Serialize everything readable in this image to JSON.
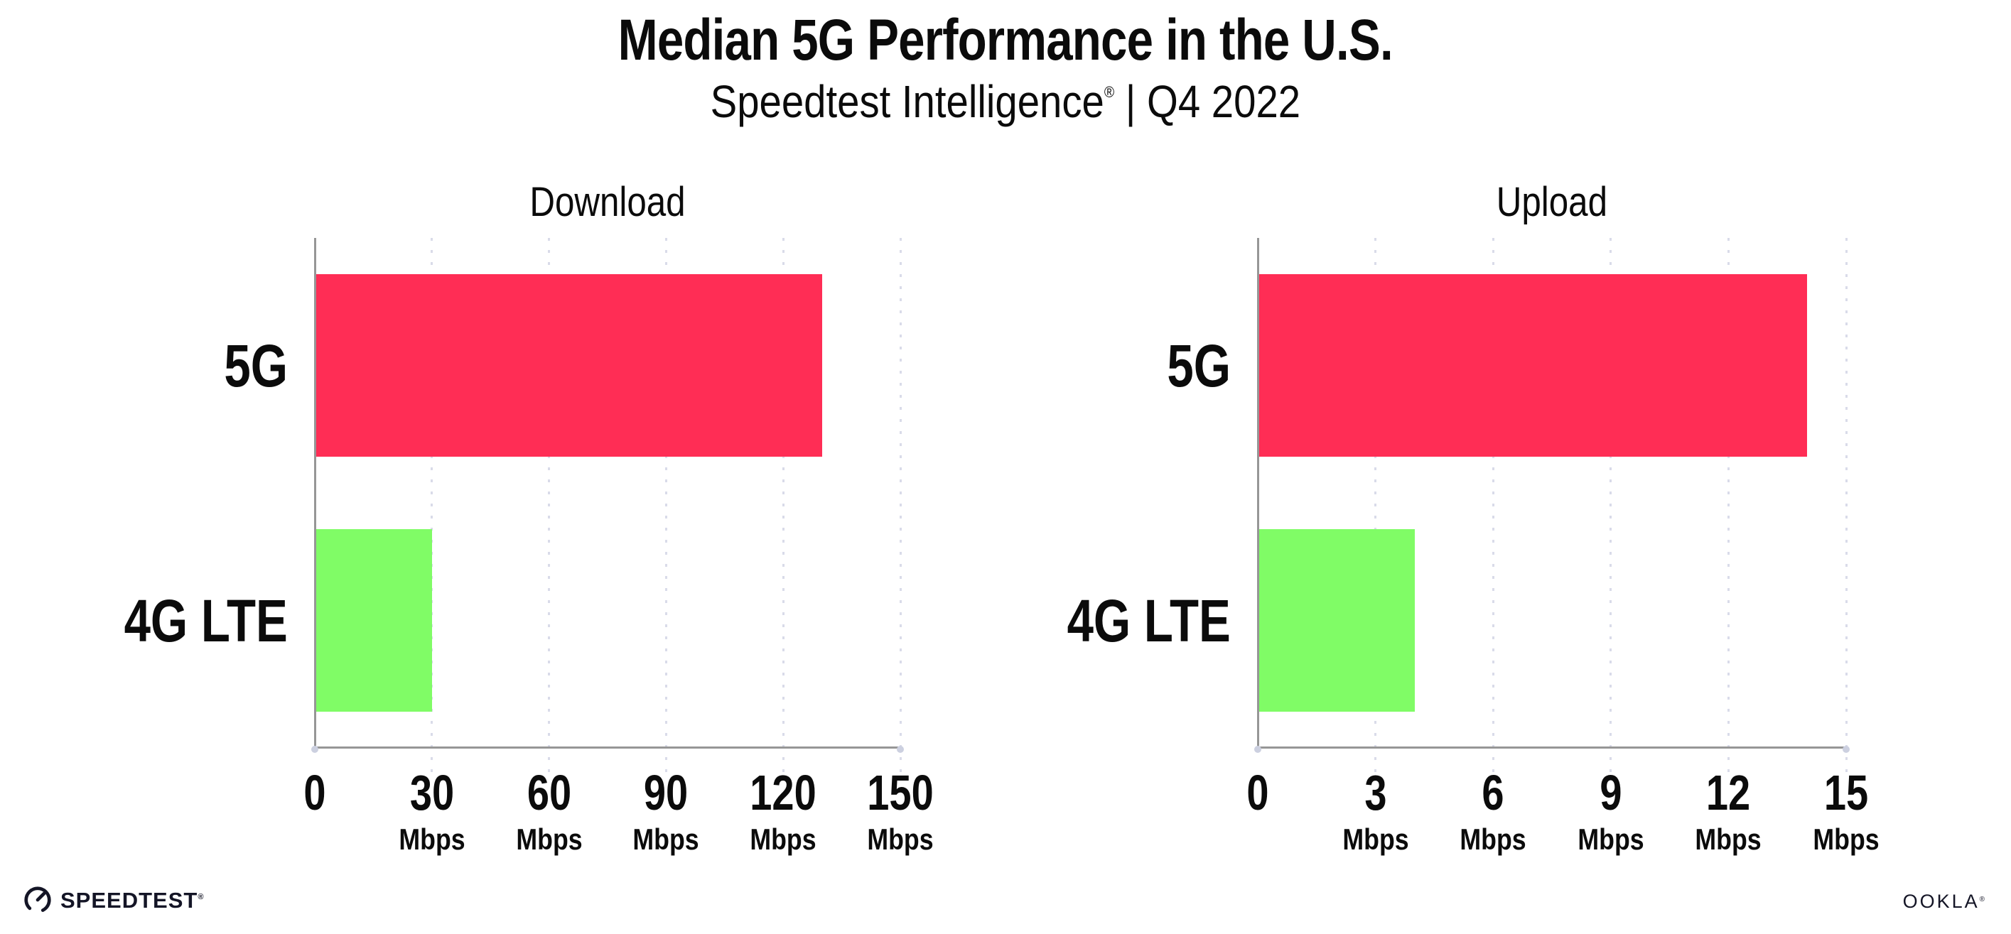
{
  "header": {
    "title": "Median 5G Performance in the U.S.",
    "subtitle_brand": "Speedtest Intelligence",
    "subtitle_reg": "®",
    "subtitle_rest": " | Q4 2022"
  },
  "colors": {
    "bar_5g": "#ff2d55",
    "bar_4g_lte": "#80fc66",
    "axis": "#969696",
    "gridline": "#d9dbe9",
    "text": "#0b0b0b",
    "logo": "#141526"
  },
  "chart_data": [
    {
      "type": "bar",
      "orientation": "horizontal",
      "title": "Download",
      "categories": [
        "5G",
        "4G LTE"
      ],
      "values": [
        130,
        30
      ],
      "unit": "Mbps",
      "xlabel": "",
      "ylabel": "",
      "xlim": [
        0,
        150
      ],
      "xticks": [
        0,
        30,
        60,
        90,
        120,
        150
      ],
      "bar_colors": [
        "#ff2d55",
        "#80fc66"
      ],
      "grid": "dotted-vertical",
      "legend": "none"
    },
    {
      "type": "bar",
      "orientation": "horizontal",
      "title": "Upload",
      "categories": [
        "5G",
        "4G LTE"
      ],
      "values": [
        14,
        4
      ],
      "unit": "Mbps",
      "xlabel": "",
      "ylabel": "",
      "xlim": [
        0,
        15
      ],
      "xticks": [
        0,
        3,
        6,
        9,
        12,
        15
      ],
      "bar_colors": [
        "#ff2d55",
        "#80fc66"
      ],
      "grid": "dotted-vertical",
      "legend": "none"
    }
  ],
  "footer": {
    "speedtest_text": "SPEEDTEST",
    "speedtest_mark": "®",
    "ookla_text": "OOKLA",
    "ookla_mark": "®"
  }
}
